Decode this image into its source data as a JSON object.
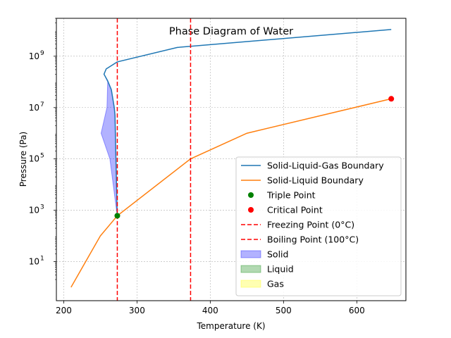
{
  "chart_data": {
    "type": "line",
    "title": "Phase Diagram of Water",
    "xlabel": "Temperature (K)",
    "ylabel": "Pressure (Pa)",
    "xlim": [
      190,
      667
    ],
    "ylim": [
      0.3,
      30000000000.0
    ],
    "yscale": "log",
    "grid": true,
    "legend_position": "lower-right",
    "x_ticks": [
      {
        "value": 200,
        "label": "200"
      },
      {
        "value": 300,
        "label": "300"
      },
      {
        "value": 400,
        "label": "400"
      },
      {
        "value": 500,
        "label": "500"
      },
      {
        "value": 600,
        "label": "600"
      }
    ],
    "y_ticks": [
      {
        "value": 10,
        "base": "10",
        "exp": "1"
      },
      {
        "value": 1000,
        "base": "10",
        "exp": "3"
      },
      {
        "value": 100000,
        "base": "10",
        "exp": "5"
      },
      {
        "value": 10000000,
        "base": "10",
        "exp": "7"
      },
      {
        "value": 1000000000,
        "base": "10",
        "exp": "9"
      }
    ],
    "series": [
      {
        "name": "Solid-Liquid-Gas Boundary",
        "kind": "line",
        "color": "#1f77b4",
        "points": [
          [
            273,
            611
          ],
          [
            270,
            5000000.0
          ],
          [
            269,
            10000000.0
          ],
          [
            265,
            50000000.0
          ],
          [
            260,
            110000000.0
          ],
          [
            255,
            200000000.0
          ],
          [
            258,
            320000000.0
          ],
          [
            273,
            600000000.0
          ],
          [
            355,
            2200000000.0
          ],
          [
            647,
            11000000000.0
          ]
        ]
      },
      {
        "name": "Solid-Liquid Boundary",
        "kind": "line",
        "color": "#ff7f0e",
        "points": [
          [
            210,
            1
          ],
          [
            250,
            100
          ],
          [
            273.16,
            611
          ],
          [
            373,
            100000.0
          ],
          [
            450,
            1000000.0
          ],
          [
            647,
            22000000.0
          ]
        ]
      },
      {
        "name": "Triple Point",
        "kind": "marker",
        "color": "#008000",
        "points": [
          [
            273.16,
            611
          ]
        ]
      },
      {
        "name": "Critical Point",
        "kind": "marker",
        "color": "#ff0000",
        "points": [
          [
            647,
            22000000.0
          ]
        ]
      },
      {
        "name": "Freezing Point (0°C)",
        "kind": "vline",
        "color": "#ff0000",
        "x": 273.15
      },
      {
        "name": "Boiling Point (100°C)",
        "kind": "vline",
        "color": "#ff0000",
        "x": 373.15
      },
      {
        "name": "Solid",
        "kind": "fill",
        "color": "#0000ff",
        "opacity": 0.3,
        "polygon": [
          [
            273,
            611
          ],
          [
            270,
            5000000.0
          ],
          [
            269,
            10000000.0
          ],
          [
            265,
            50000000.0
          ],
          [
            260,
            110000000.0
          ],
          [
            255,
            200000000.0
          ],
          [
            260,
            100000000.0
          ],
          [
            259,
            10000000.0
          ],
          [
            251,
            1000000.0
          ],
          [
            263,
            100000.0
          ],
          [
            273,
            611
          ]
        ]
      },
      {
        "name": "Liquid",
        "kind": "fill",
        "color": "#008000",
        "opacity": 0.3,
        "polygon": []
      },
      {
        "name": "Gas",
        "kind": "fill",
        "color": "#ffff00",
        "opacity": 0.3,
        "polygon": []
      }
    ]
  }
}
